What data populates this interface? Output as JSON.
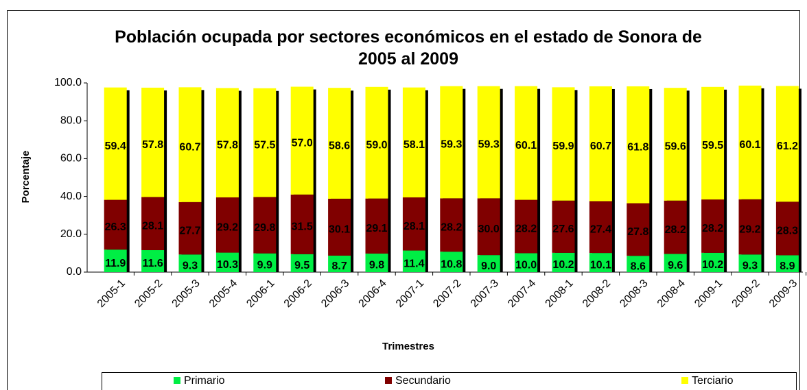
{
  "chart_data": {
    "type": "stacked_bar",
    "title": "Población ocupada por sectores económicos en el estado de Sonora de 2005 al 2009",
    "x_label": "Trimestres",
    "y_label": "Porcentaje",
    "categories": [
      "2005-1",
      "2005-2",
      "2005-3",
      "2005-4",
      "2006-1",
      "2006-2",
      "2006-3",
      "2006-4",
      "2007-1",
      "2007-2",
      "2007-3",
      "2007-4",
      "2008-1",
      "2008-2",
      "2008-3",
      "2008-4",
      "2009-1",
      "2009-2",
      "2009-3"
    ],
    "series": [
      {
        "name": "Primario",
        "color": "#00ee44",
        "values": [
          11.9,
          11.6,
          9.3,
          10.3,
          9.9,
          9.5,
          8.7,
          9.8,
          11.4,
          10.8,
          9.0,
          10.0,
          10.2,
          10.1,
          8.6,
          9.6,
          10.2,
          9.3,
          8.9
        ],
        "value_labels": [
          "11.9",
          "11.6",
          "9.3",
          "10.3",
          "9.9",
          "9.5",
          "8.7",
          "9.8",
          "11.4",
          "10.8",
          "9.0",
          "10.0",
          "10.2",
          "10.1",
          "8.6",
          "9.6",
          "10.2",
          "9.3",
          "8.9"
        ]
      },
      {
        "name": "Secundario",
        "color": "#800000",
        "values": [
          26.3,
          28.1,
          27.7,
          29.2,
          29.8,
          31.5,
          30.1,
          29.1,
          28.1,
          28.2,
          30.0,
          28.2,
          27.6,
          27.4,
          27.8,
          28.2,
          28.2,
          29.2,
          28.3
        ],
        "value_labels": [
          "26.3",
          "28.1",
          "27.7",
          "29.2",
          "29.8",
          "31.5",
          "30.1",
          "29.1",
          "28.1",
          "28.2",
          "30.0",
          "28.2",
          "27.6",
          "27.4",
          "27.8",
          "28.2",
          "28.2",
          "29.2",
          "28.3"
        ]
      },
      {
        "name": "Terciario",
        "color": "#ffff00",
        "values": [
          59.4,
          57.8,
          60.7,
          57.8,
          57.5,
          57.0,
          58.6,
          59.0,
          58.1,
          59.3,
          59.3,
          60.1,
          59.9,
          60.7,
          61.8,
          59.6,
          59.5,
          60.1,
          61.2
        ],
        "value_labels": [
          "59.4",
          "57.8",
          "60.7",
          "57.8",
          "57.5",
          "57.0",
          "58.6",
          "59.0",
          "58.1",
          "59.3",
          "59.3",
          "60.1",
          "59.9",
          "60.7",
          "61.8",
          "59.6",
          "59.5",
          "60.1",
          "61.2"
        ]
      }
    ],
    "ylim": [
      0,
      100
    ],
    "yticks": [
      {
        "value": 0,
        "label": "0.0"
      },
      {
        "value": 20,
        "label": "20.0"
      },
      {
        "value": 40,
        "label": "40.0"
      },
      {
        "value": 60,
        "label": "60.0"
      },
      {
        "value": 80,
        "label": "80.0"
      },
      {
        "value": 100,
        "label": "100.0"
      }
    ],
    "legend": "bottom"
  }
}
